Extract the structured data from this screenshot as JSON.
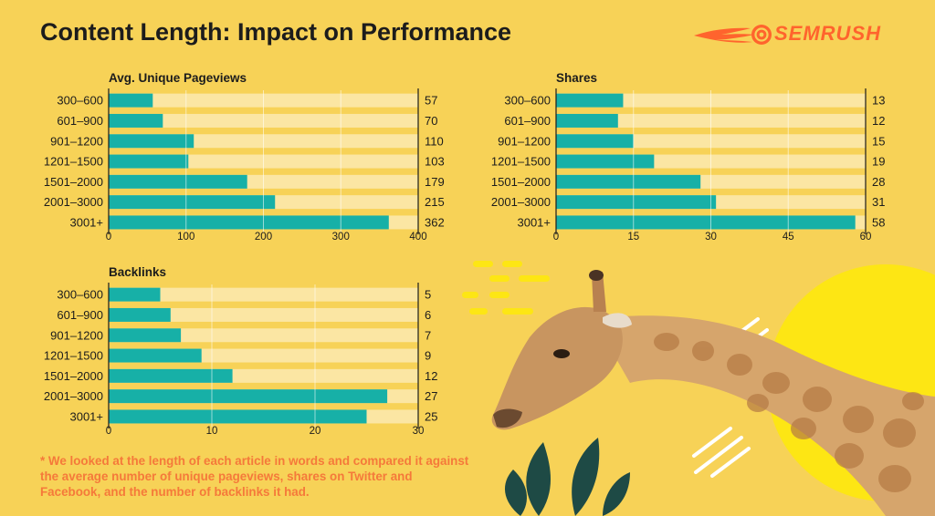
{
  "header": {
    "title": "Content Length: Impact on Performance",
    "brand": "SEMRUSH"
  },
  "footnote": "* We looked at the length of each article in words and compared it against the average number of unique pageviews, shares on Twitter and Facebook, and the number of backlinks it had.",
  "colors": {
    "background": "#f7d257",
    "bar": "#17b0a7",
    "track": "#fbe6a3",
    "brand": "#ff642d",
    "footnote": "#f5793a",
    "text": "#1c1c1c"
  },
  "chart_data": [
    {
      "type": "bar",
      "orientation": "horizontal",
      "title": "Avg. Unique Pageviews",
      "categories": [
        "300–600",
        "601–900",
        "901–1200",
        "1201–1500",
        "1501–2000",
        "2001–3000",
        "3001+"
      ],
      "values": [
        57,
        70,
        110,
        103,
        179,
        215,
        362
      ],
      "value_labels": [
        "57",
        "70",
        "110",
        "103",
        "179",
        "215",
        "362"
      ],
      "xlim": [
        0,
        400
      ],
      "ticks": [
        0,
        100,
        200,
        300,
        400
      ],
      "grid": true
    },
    {
      "type": "bar",
      "orientation": "horizontal",
      "title": "Shares",
      "categories": [
        "300–600",
        "601–900",
        "901–1200",
        "1201–1500",
        "1501–2000",
        "2001–3000",
        "3001+"
      ],
      "values": [
        13,
        12,
        15,
        19,
        28,
        31,
        58
      ],
      "value_labels": [
        "13",
        "12",
        "15",
        "19",
        "28",
        "31",
        "58"
      ],
      "xlim": [
        0,
        60
      ],
      "ticks": [
        0,
        15,
        30,
        45,
        60
      ],
      "grid": true
    },
    {
      "type": "bar",
      "orientation": "horizontal",
      "title": "Backlinks",
      "categories": [
        "300–600",
        "601–900",
        "901–1200",
        "1201–1500",
        "1501–2000",
        "2001–3000",
        "3001+"
      ],
      "values": [
        5,
        6,
        7,
        9,
        12,
        27,
        25
      ],
      "value_labels": [
        "5",
        "6",
        "7",
        "9",
        "12",
        "27",
        "25"
      ],
      "xlim": [
        0,
        30
      ],
      "ticks": [
        0,
        10,
        20,
        30
      ],
      "grid": true
    }
  ]
}
